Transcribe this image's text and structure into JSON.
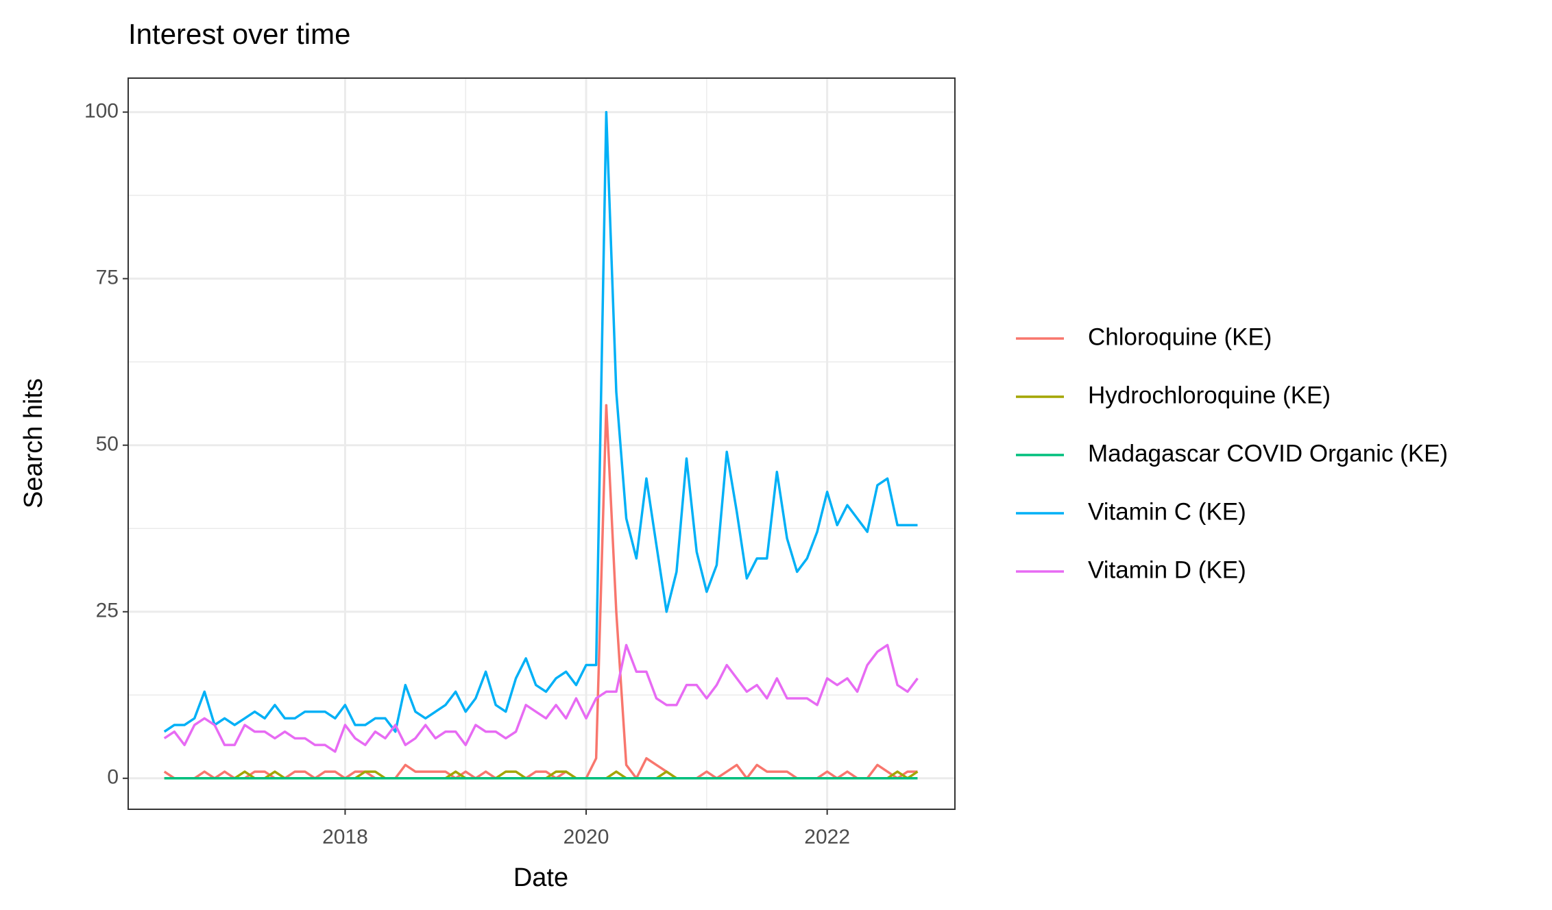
{
  "chart_data": {
    "type": "line",
    "title": "Interest over time",
    "x_label": "Date",
    "y_label": "Search hits",
    "x": [
      2016.5,
      2016.583,
      2016.667,
      2016.75,
      2016.833,
      2016.917,
      2017.0,
      2017.083,
      2017.167,
      2017.25,
      2017.333,
      2017.417,
      2017.5,
      2017.583,
      2017.667,
      2017.75,
      2017.833,
      2017.917,
      2018.0,
      2018.083,
      2018.167,
      2018.25,
      2018.333,
      2018.417,
      2018.5,
      2018.583,
      2018.667,
      2018.75,
      2018.833,
      2018.917,
      2019.0,
      2019.083,
      2019.167,
      2019.25,
      2019.333,
      2019.417,
      2019.5,
      2019.583,
      2019.667,
      2019.75,
      2019.833,
      2019.917,
      2020.0,
      2020.083,
      2020.167,
      2020.25,
      2020.333,
      2020.417,
      2020.5,
      2020.583,
      2020.667,
      2020.75,
      2020.833,
      2020.917,
      2021.0,
      2021.083,
      2021.167,
      2021.25,
      2021.333,
      2021.417,
      2021.5,
      2021.583,
      2021.667,
      2021.75,
      2021.833,
      2021.917,
      2022.0,
      2022.083,
      2022.167,
      2022.25,
      2022.333,
      2022.417,
      2022.5,
      2022.583,
      2022.667,
      2022.75
    ],
    "series": [
      {
        "name": "Chloroquine (KE)",
        "color": "#F8766D",
        "values": [
          1,
          0,
          0,
          0,
          1,
          0,
          1,
          0,
          0,
          1,
          1,
          0,
          0,
          1,
          1,
          0,
          1,
          1,
          0,
          1,
          1,
          0,
          0,
          0,
          2,
          1,
          1,
          1,
          1,
          0,
          1,
          0,
          1,
          0,
          0,
          0,
          0,
          1,
          1,
          0,
          1,
          0,
          0,
          3,
          56,
          25,
          2,
          0,
          3,
          2,
          1,
          0,
          0,
          0,
          1,
          0,
          1,
          2,
          0,
          2,
          1,
          1,
          1,
          0,
          0,
          0,
          1,
          0,
          1,
          0,
          0,
          2,
          1,
          0,
          1,
          1
        ]
      },
      {
        "name": "Hydrochloroquine (KE)",
        "color": "#A3A500",
        "values": [
          0,
          0,
          0,
          0,
          0,
          0,
          0,
          0,
          1,
          0,
          0,
          1,
          0,
          0,
          0,
          0,
          0,
          0,
          0,
          0,
          1,
          1,
          0,
          0,
          0,
          0,
          0,
          0,
          0,
          1,
          0,
          0,
          0,
          0,
          1,
          1,
          0,
          0,
          0,
          1,
          1,
          0,
          0,
          0,
          0,
          1,
          0,
          0,
          0,
          0,
          1,
          0,
          0,
          0,
          0,
          0,
          0,
          0,
          0,
          0,
          0,
          0,
          0,
          0,
          0,
          0,
          0,
          0,
          0,
          0,
          0,
          0,
          0,
          1,
          0,
          1
        ]
      },
      {
        "name": "Madagascar COVID Organic (KE)",
        "color": "#00BF7D",
        "values": [
          0,
          0,
          0,
          0,
          0,
          0,
          0,
          0,
          0,
          0,
          0,
          0,
          0,
          0,
          0,
          0,
          0,
          0,
          0,
          0,
          0,
          0,
          0,
          0,
          0,
          0,
          0,
          0,
          0,
          0,
          0,
          0,
          0,
          0,
          0,
          0,
          0,
          0,
          0,
          0,
          0,
          0,
          0,
          0,
          0,
          0,
          0,
          0,
          0,
          0,
          0,
          0,
          0,
          0,
          0,
          0,
          0,
          0,
          0,
          0,
          0,
          0,
          0,
          0,
          0,
          0,
          0,
          0,
          0,
          0,
          0,
          0,
          0,
          0,
          0,
          0
        ]
      },
      {
        "name": "Vitamin C (KE)",
        "color": "#00B0F6",
        "values": [
          7,
          8,
          8,
          9,
          13,
          8,
          9,
          8,
          9,
          10,
          9,
          11,
          9,
          9,
          10,
          10,
          10,
          9,
          11,
          8,
          8,
          9,
          9,
          7,
          14,
          10,
          9,
          10,
          11,
          13,
          10,
          12,
          16,
          11,
          10,
          15,
          18,
          14,
          13,
          15,
          16,
          14,
          17,
          17,
          100,
          58,
          39,
          33,
          45,
          35,
          25,
          31,
          48,
          34,
          28,
          32,
          49,
          40,
          30,
          33,
          33,
          46,
          36,
          31,
          33,
          37,
          43,
          38,
          41,
          39,
          37,
          44,
          45,
          38,
          38,
          38
        ]
      },
      {
        "name": "Vitamin D (KE)",
        "color": "#E76BF3",
        "values": [
          6,
          7,
          5,
          8,
          9,
          8,
          5,
          5,
          8,
          7,
          7,
          6,
          7,
          6,
          6,
          5,
          5,
          4,
          8,
          6,
          5,
          7,
          6,
          8,
          5,
          6,
          8,
          6,
          7,
          7,
          5,
          8,
          7,
          7,
          6,
          7,
          11,
          10,
          9,
          11,
          9,
          12,
          9,
          12,
          13,
          13,
          20,
          16,
          16,
          12,
          11,
          11,
          14,
          14,
          12,
          14,
          17,
          15,
          13,
          14,
          12,
          15,
          12,
          12,
          12,
          11,
          15,
          14,
          15,
          13,
          17,
          19,
          20,
          14,
          13,
          15
        ]
      }
    ],
    "xlim": [
      2016.2,
      2023.06
    ],
    "xticks": [
      2018,
      2020,
      2022
    ],
    "ylim": [
      -4.65,
      105.1
    ],
    "yticks": [
      0,
      25,
      50,
      75,
      100
    ],
    "grid": true,
    "legend": "right"
  }
}
